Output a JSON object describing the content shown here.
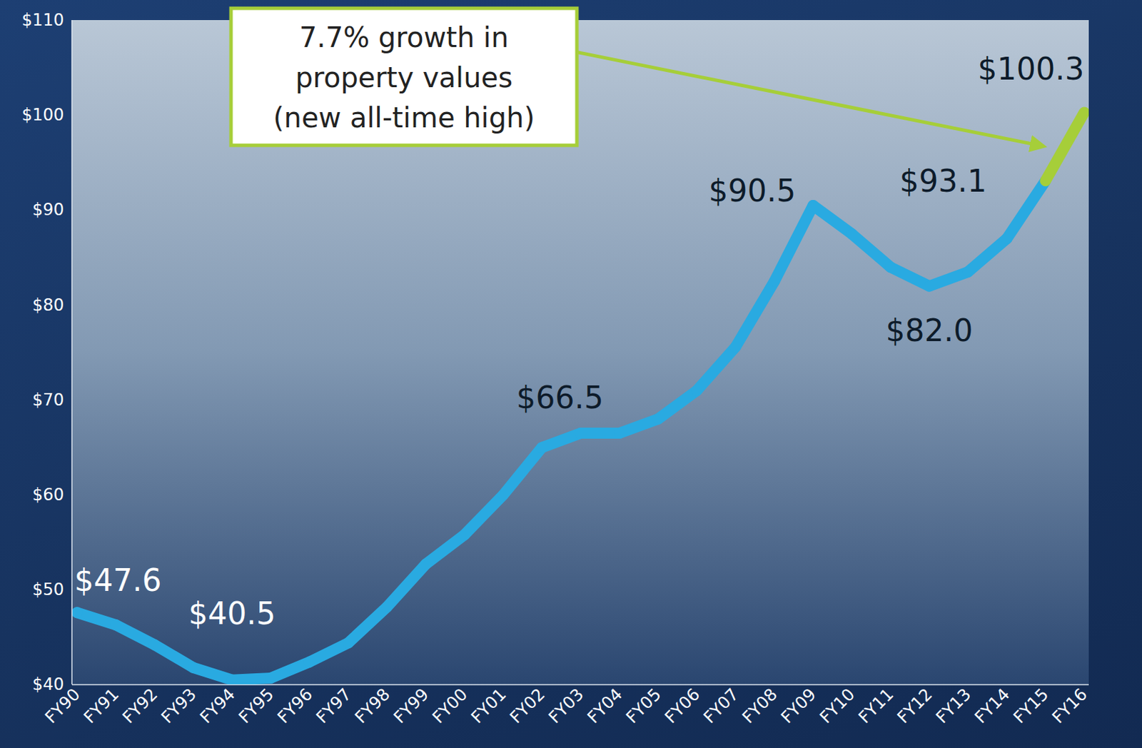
{
  "chart_data": {
    "type": "line",
    "categories": [
      "FY90",
      "FY91",
      "FY92",
      "FY93",
      "FY94",
      "FY95",
      "FY96",
      "FY97",
      "FY98",
      "FY99",
      "FY00",
      "FY01",
      "FY02",
      "FY03",
      "FY04",
      "FY05",
      "FY06",
      "FY07",
      "FY08",
      "FY09",
      "FY10",
      "FY11",
      "FY12",
      "FY13",
      "FY14",
      "FY15",
      "FY16"
    ],
    "values": [
      47.6,
      46.3,
      44.2,
      41.8,
      40.5,
      40.7,
      42.4,
      44.4,
      48.2,
      52.7,
      55.8,
      60.0,
      65.0,
      66.5,
      66.5,
      68.0,
      71.0,
      75.6,
      82.5,
      90.5,
      87.5,
      84.0,
      82.0,
      83.5,
      87.0,
      93.1,
      100.3
    ],
    "value_labels": [
      "$47.6",
      null,
      null,
      null,
      "$40.5",
      null,
      null,
      null,
      null,
      null,
      null,
      null,
      null,
      "$66.5",
      null,
      null,
      null,
      null,
      null,
      "$90.5",
      null,
      null,
      "$82.0",
      null,
      null,
      "$93.1",
      "$100.3"
    ],
    "data_labels": true,
    "colors": [
      "#29aae1",
      "#29aae1",
      "#29aae1",
      "#29aae1",
      "#29aae1",
      "#29aae1",
      "#29aae1",
      "#29aae1",
      "#29aae1",
      "#29aae1",
      "#29aae1",
      "#29aae1",
      "#29aae1",
      "#29aae1",
      "#29aae1",
      "#29aae1",
      "#29aae1",
      "#29aae1",
      "#29aae1",
      "#29aae1",
      "#29aae1",
      "#29aae1",
      "#29aae1",
      "#29aae1",
      "#29aae1",
      "#29aae1",
      "#a6ce39"
    ],
    "ylim": [
      40,
      110
    ],
    "yticks": [
      {
        "value": 40,
        "label": "$40"
      },
      {
        "value": 50,
        "label": "$50"
      },
      {
        "value": 60,
        "label": "$60"
      },
      {
        "value": 70,
        "label": "$70"
      },
      {
        "value": 80,
        "label": "$80"
      },
      {
        "value": 90,
        "label": "$90"
      },
      {
        "value": 100,
        "label": "$100"
      },
      {
        "value": 110,
        "label": "$110"
      }
    ],
    "grid": false,
    "annotations": [
      "7.7% growth in\nproperty values\n(new all-time high)"
    ]
  }
}
